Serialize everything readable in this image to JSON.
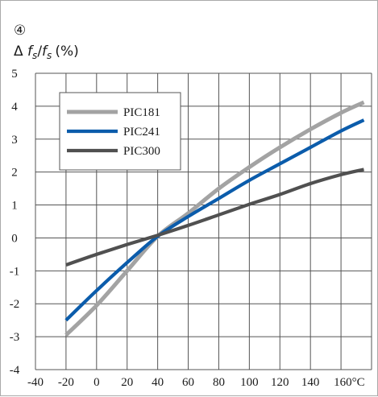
{
  "chart_data": {
    "type": "line",
    "panel_marker": "④",
    "ylabel": "Δ f_s/f_s (%)",
    "ylabel_parts": {
      "delta": "Δ",
      "num": "f",
      "num_sub": "s",
      "slash": "/",
      "den": "f",
      "den_sub": "s",
      "unit": "(%)"
    },
    "xlabel": "",
    "x_unit": "°C",
    "xlim": [
      -40,
      180
    ],
    "ylim": [
      -4,
      5
    ],
    "x_ticks": [
      -40,
      -20,
      0,
      20,
      40,
      60,
      80,
      100,
      120,
      140,
      160
    ],
    "x_tick_labels": [
      "-40",
      "-20",
      "0",
      "20",
      "40",
      "60",
      "80",
      "100",
      "120",
      "140",
      "160°C"
    ],
    "y_ticks": [
      -4,
      -3,
      -2,
      -1,
      0,
      1,
      2,
      3,
      4,
      5
    ],
    "y_tick_labels": [
      "-4",
      "-3",
      "-2",
      "-1",
      "0",
      "1",
      "2",
      "3",
      "4",
      "5"
    ],
    "grid": true,
    "legend_position": "top-left",
    "series": [
      {
        "name": "PIC181",
        "color": "#a3a3a3",
        "x": [
          -20,
          0,
          20,
          40,
          60,
          80,
          100,
          120,
          140,
          160,
          175
        ],
        "y": [
          -2.95,
          -2.05,
          -1.0,
          0.05,
          0.75,
          1.5,
          2.15,
          2.75,
          3.3,
          3.8,
          4.12
        ]
      },
      {
        "name": "PIC241",
        "color": "#0b5cab",
        "x": [
          -20,
          0,
          20,
          40,
          60,
          80,
          100,
          120,
          140,
          160,
          175
        ],
        "y": [
          -2.5,
          -1.6,
          -0.75,
          0.05,
          0.65,
          1.2,
          1.75,
          2.25,
          2.75,
          3.25,
          3.58
        ]
      },
      {
        "name": "PIC300",
        "color": "#505050",
        "x": [
          -20,
          0,
          20,
          40,
          60,
          80,
          100,
          120,
          140,
          160,
          175
        ],
        "y": [
          -0.82,
          -0.5,
          -0.2,
          0.08,
          0.38,
          0.7,
          1.02,
          1.32,
          1.65,
          1.92,
          2.08
        ]
      }
    ]
  }
}
